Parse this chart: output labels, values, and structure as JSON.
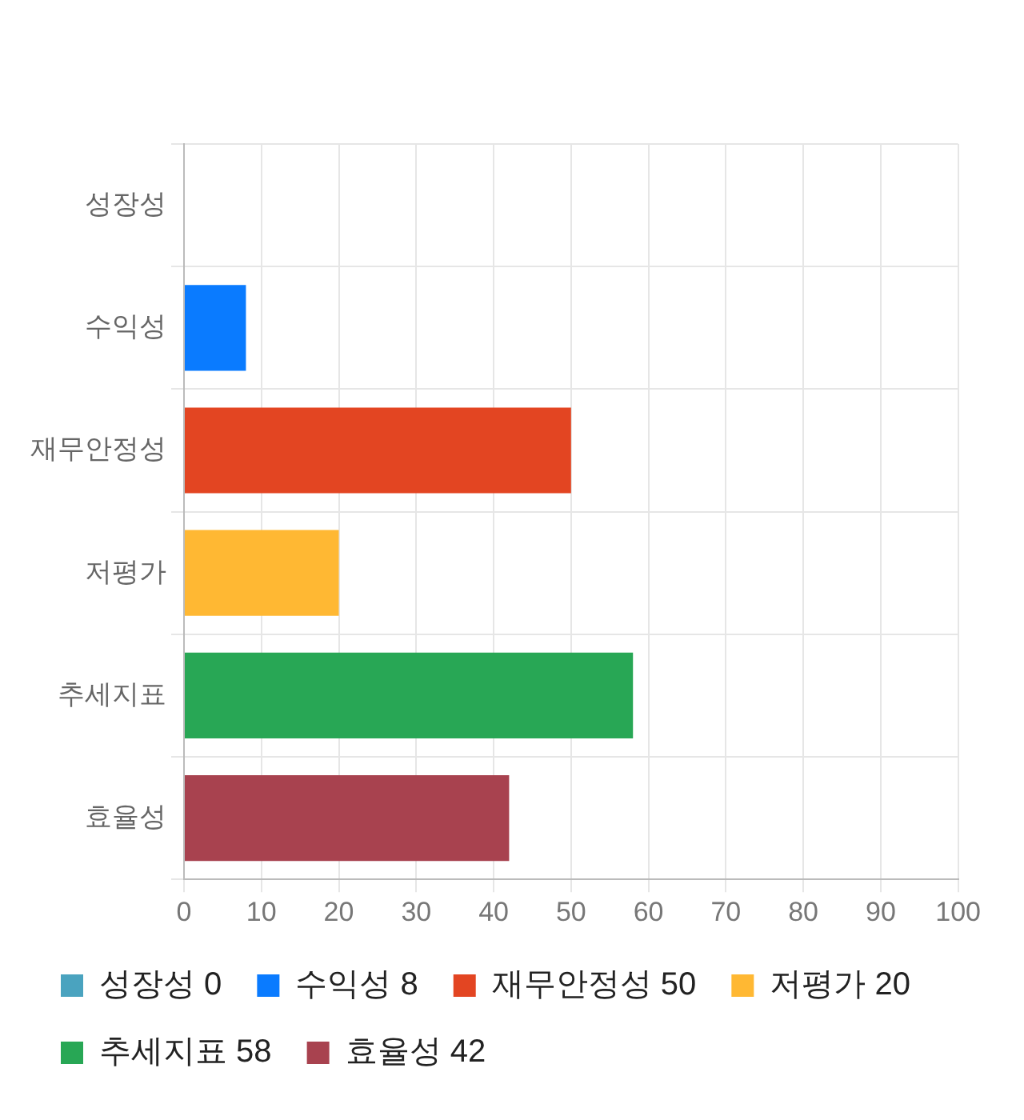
{
  "chart_data": {
    "type": "bar",
    "orientation": "horizontal",
    "categories": [
      "성장성",
      "수익성",
      "재무안정성",
      "저평가",
      "추세지표",
      "효율성"
    ],
    "series": [
      {
        "name": "성장성 0",
        "color": "#4aa3bf",
        "values": [
          0,
          null,
          null,
          null,
          null,
          null
        ]
      },
      {
        "name": "수익성 8",
        "color": "#0a7bff",
        "values": [
          null,
          8,
          null,
          null,
          null,
          null
        ]
      },
      {
        "name": "재무안정성 50",
        "color": "#e34522",
        "values": [
          null,
          null,
          50,
          null,
          null,
          null
        ]
      },
      {
        "name": "저평가 20",
        "color": "#ffb833",
        "values": [
          null,
          null,
          null,
          20,
          null,
          null
        ]
      },
      {
        "name": "추세지표 58",
        "color": "#28a755",
        "values": [
          null,
          null,
          null,
          null,
          58,
          null
        ]
      },
      {
        "name": "효율성 42",
        "color": "#a8424f",
        "values": [
          null,
          null,
          null,
          null,
          null,
          42
        ]
      }
    ],
    "xlim": [
      0,
      100
    ],
    "xticks": [
      0,
      10,
      20,
      30,
      40,
      50,
      60,
      70,
      80,
      90,
      100
    ],
    "grid": true,
    "legend": "bottom"
  }
}
